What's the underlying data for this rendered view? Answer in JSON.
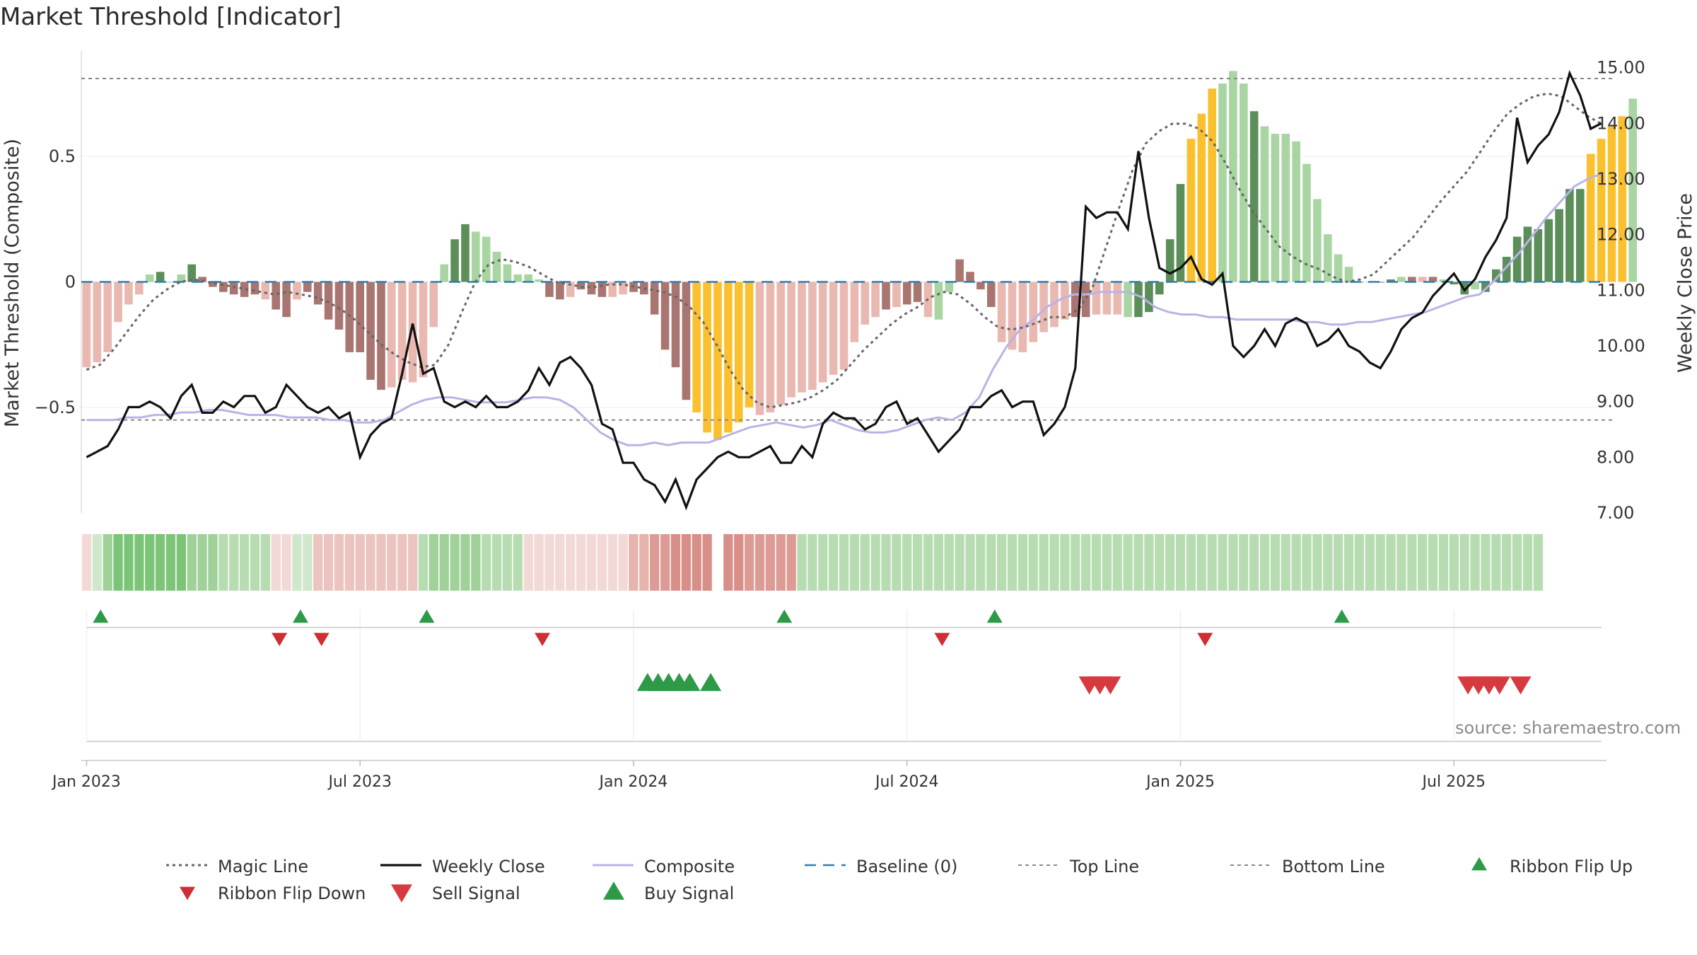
{
  "title": "Market Threshold [Indicator]",
  "source": "source: sharemaestro.com",
  "chart_data": {
    "type": "bar",
    "title": "Market Threshold [Indicator]",
    "ylabel_left": "Market Threshold (Composite)",
    "ylabel_right": "Weekly Close Price",
    "ylim_left": [
      -0.92,
      0.92
    ],
    "ylim_right": [
      7.0,
      15.3
    ],
    "yticks_left": [
      {
        "value": 0.5,
        "label": "0.5"
      },
      {
        "value": 0,
        "label": "0"
      },
      {
        "value": -0.5,
        "label": "−0.5"
      }
    ],
    "yticks_right": [
      {
        "value": 15,
        "label": "15.00"
      },
      {
        "value": 14,
        "label": "14.00"
      },
      {
        "value": 13,
        "label": "13.00"
      },
      {
        "value": 12,
        "label": "12.00"
      },
      {
        "value": 11,
        "label": "11.00"
      },
      {
        "value": 10,
        "label": "10.00"
      },
      {
        "value": 9,
        "label": "9.00"
      },
      {
        "value": 8,
        "label": "8.00"
      },
      {
        "value": 7,
        "label": "7.00"
      }
    ],
    "xticks": [
      {
        "week": 1,
        "label": "Jan 2023"
      },
      {
        "week": 27,
        "label": "Jul 2023"
      },
      {
        "week": 53,
        "label": "Jan 2024"
      },
      {
        "week": 79,
        "label": "Jul 2024"
      },
      {
        "week": 105,
        "label": "Jan 2025"
      },
      {
        "week": 131,
        "label": "Jul 2025"
      }
    ],
    "weeks": 145,
    "top_line": 0.81,
    "bottom_line": -0.55,
    "composite_values": [
      -0.34,
      -0.32,
      -0.28,
      -0.16,
      -0.09,
      -0.05,
      0.03,
      0.04,
      0,
      0.03,
      0.07,
      0.02,
      -0.02,
      -0.04,
      -0.05,
      -0.06,
      -0.05,
      -0.07,
      -0.11,
      -0.14,
      -0.07,
      -0.04,
      -0.09,
      -0.15,
      -0.19,
      -0.28,
      -0.28,
      -0.39,
      -0.43,
      -0.42,
      -0.39,
      -0.4,
      -0.38,
      -0.18,
      0.07,
      0.17,
      0.23,
      0.2,
      0.18,
      0.12,
      0.07,
      0.03,
      0.03,
      0.01,
      -0.06,
      -0.07,
      -0.06,
      -0.03,
      -0.05,
      -0.06,
      -0.06,
      -0.05,
      -0.04,
      -0.05,
      -0.13,
      -0.27,
      -0.34,
      -0.47,
      -0.52,
      -0.6,
      -0.63,
      -0.6,
      -0.56,
      -0.5,
      -0.53,
      -0.52,
      -0.49,
      -0.46,
      -0.44,
      -0.43,
      -0.4,
      -0.37,
      -0.35,
      -0.24,
      -0.17,
      -0.14,
      -0.11,
      -0.1,
      -0.09,
      -0.08,
      -0.14,
      -0.15,
      -0.04,
      0.09,
      0.04,
      -0.03,
      -0.1,
      -0.24,
      -0.27,
      -0.28,
      -0.24,
      -0.2,
      -0.18,
      -0.15,
      -0.14,
      -0.14,
      -0.13,
      -0.13,
      -0.13,
      -0.14,
      -0.14,
      -0.12,
      -0.05,
      0.17,
      0.39,
      0.57,
      0.67,
      0.77,
      0.79,
      0.84,
      0.79,
      0.68,
      0.62,
      0.59,
      0.59,
      0.56,
      0.47,
      0.33,
      0.19,
      0.11,
      0.06,
      0,
      0,
      0,
      0.01,
      0.02,
      0.02,
      0.02,
      0.02,
      0.01,
      -0.01,
      -0.05,
      -0.03,
      -0.04,
      0.05,
      0.1,
      0.18,
      0.22,
      0.21,
      0.25,
      0.29,
      0.37,
      0.37,
      0.51,
      0.57,
      0.62,
      0.66,
      0.73
    ],
    "bar_colors": [
      "#e9b8b1",
      "#e9b8b1",
      "#e9b8b1",
      "#e9b8b1",
      "#e9b8b1",
      "#e9b8b1",
      "#a8d5a2",
      "#5b8e58",
      "#a8d5a2",
      "#a8d5a2",
      "#5b8e58",
      "#a97570",
      "#a97570",
      "#a97570",
      "#a97570",
      "#a97570",
      "#a97570",
      "#e9b8b1",
      "#a97570",
      "#a97570",
      "#e9b8b1",
      "#a97570",
      "#a97570",
      "#a97570",
      "#a97570",
      "#a97570",
      "#a97570",
      "#a97570",
      "#a97570",
      "#e9b8b1",
      "#e9b8b1",
      "#e9b8b1",
      "#e9b8b1",
      "#e9b8b1",
      "#a8d5a2",
      "#5b8e58",
      "#5b8e58",
      "#a8d5a2",
      "#a8d5a2",
      "#a8d5a2",
      "#a8d5a2",
      "#a8d5a2",
      "#a8d5a2",
      "#a8d5a2",
      "#a97570",
      "#a97570",
      "#e9b8b1",
      "#a97570",
      "#a97570",
      "#a97570",
      "#e9b8b1",
      "#e9b8b1",
      "#a97570",
      "#a97570",
      "#a97570",
      "#a97570",
      "#a97570",
      "#a97570",
      "#fbc02d",
      "#fbc02d",
      "#fbc02d",
      "#fbc02d",
      "#fbc02d",
      "#fbc02d",
      "#e9b8b1",
      "#e9b8b1",
      "#e9b8b1",
      "#e9b8b1",
      "#e9b8b1",
      "#e9b8b1",
      "#e9b8b1",
      "#e9b8b1",
      "#e9b8b1",
      "#e9b8b1",
      "#e9b8b1",
      "#e9b8b1",
      "#a97570",
      "#e9b8b1",
      "#a97570",
      "#a97570",
      "#e9b8b1",
      "#a8d5a2",
      "#a8d5a2",
      "#a97570",
      "#a97570",
      "#a97570",
      "#a97570",
      "#e9b8b1",
      "#e9b8b1",
      "#e9b8b1",
      "#e9b8b1",
      "#e9b8b1",
      "#e9b8b1",
      "#e9b8b1",
      "#a97570",
      "#a97570",
      "#e9b8b1",
      "#e9b8b1",
      "#e9b8b1",
      "#a8d5a2",
      "#5b8e58",
      "#5b8e58",
      "#5b8e58",
      "#5b8e58",
      "#5b8e58",
      "#fbc02d",
      "#fbc02d",
      "#fbc02d",
      "#a8d5a2",
      "#a8d5a2",
      "#a8d5a2",
      "#5b8e58",
      "#a8d5a2",
      "#a8d5a2",
      "#a8d5a2",
      "#a8d5a2",
      "#a8d5a2",
      "#a8d5a2",
      "#a8d5a2",
      "#a8d5a2",
      "#a8d5a2",
      "#5b8e58",
      "#a8d5a2",
      "#5b8e58",
      "#5b8e58",
      "#a8d5a2",
      "#a97570",
      "#e9b8b1",
      "#a97570",
      "#a8d5a2",
      "#5b8e58",
      "#5b8e58",
      "#a8d5a2",
      "#5b8e58",
      "#5b8e58",
      "#5b8e58",
      "#5b8e58",
      "#5b8e58",
      "#5b8e58",
      "#5b8e58",
      "#5b8e58",
      "#5b8e58",
      "#5b8e58",
      "#fbc02d",
      "#fbc02d",
      "#fbc02d",
      "#fbc02d",
      "#a8d5a2",
      "#a8d5a2"
    ],
    "magic_line": [
      -0.35,
      -0.33,
      -0.27,
      -0.2,
      -0.13,
      -0.07,
      -0.03,
      0,
      0.01,
      0,
      -0.01,
      -0.02,
      -0.03,
      -0.04,
      -0.05,
      -0.04,
      -0.05,
      -0.06,
      -0.08,
      -0.11,
      -0.15,
      -0.2,
      -0.25,
      -0.29,
      -0.32,
      -0.34,
      -0.33,
      -0.25,
      -0.12,
      0,
      0.07,
      0.09,
      0.08,
      0.06,
      0.03,
      0,
      -0.01,
      -0.02,
      -0.02,
      -0.01,
      -0.01,
      -0.02,
      -0.03,
      -0.04,
      -0.06,
      -0.1,
      -0.16,
      -0.25,
      -0.35,
      -0.43,
      -0.48,
      -0.5,
      -0.49,
      -0.48,
      -0.46,
      -0.43,
      -0.39,
      -0.33,
      -0.27,
      -0.22,
      -0.17,
      -0.13,
      -0.1,
      -0.06,
      -0.04,
      -0.05,
      -0.09,
      -0.14,
      -0.18,
      -0.19,
      -0.18,
      -0.16,
      -0.14,
      -0.14,
      -0.11,
      -0.03,
      0.13,
      0.29,
      0.44,
      0.55,
      0.6,
      0.63,
      0.63,
      0.61,
      0.56,
      0.47,
      0.37,
      0.28,
      0.21,
      0.14,
      0.1,
      0.07,
      0.05,
      0.02,
      0,
      0.01,
      0.03,
      0.08,
      0.13,
      0.18,
      0.25,
      0.32,
      0.38,
      0.44,
      0.52,
      0.6,
      0.67,
      0.71,
      0.74,
      0.75,
      0.74,
      0.7,
      0.66,
      0.63
    ],
    "weekly_close": [
      8.0,
      8.1,
      8.2,
      8.5,
      8.9,
      8.9,
      9.0,
      8.9,
      8.7,
      9.1,
      9.3,
      8.8,
      8.8,
      9.0,
      8.9,
      9.1,
      9.1,
      8.8,
      8.9,
      9.3,
      9.1,
      8.9,
      8.8,
      8.9,
      8.7,
      8.8,
      8.0,
      8.4,
      8.6,
      8.7,
      9.5,
      10.4,
      9.5,
      9.6,
      9.0,
      8.9,
      9.0,
      8.9,
      9.1,
      8.9,
      8.9,
      9.0,
      9.2,
      9.6,
      9.3,
      9.7,
      9.8,
      9.6,
      9.3,
      8.6,
      8.5,
      7.9,
      7.9,
      7.6,
      7.5,
      7.2,
      7.6,
      7.1,
      7.6,
      7.8,
      8.0,
      8.1,
      8.0,
      8.0,
      8.1,
      8.2,
      7.9,
      7.9,
      8.2,
      8.0,
      8.6,
      8.8,
      8.7,
      8.7,
      8.5,
      8.6,
      8.9,
      9.0,
      8.6,
      8.7,
      8.4,
      8.1,
      8.3,
      8.5,
      8.9,
      8.9,
      9.1,
      9.2,
      8.9,
      9.0,
      9.0,
      8.4,
      8.6,
      8.9,
      9.6,
      12.5,
      12.3,
      12.4,
      12.4,
      12.1,
      13.5,
      12.3,
      11.4,
      11.3,
      11.4,
      11.6,
      11.2,
      11.1,
      11.3,
      10.0,
      9.8,
      10.0,
      10.3,
      10.0,
      10.4,
      10.5,
      10.4,
      10.0,
      10.1,
      10.3,
      10.0,
      9.9,
      9.7,
      9.6,
      9.9,
      10.3,
      10.5,
      10.6,
      10.9,
      11.1,
      11.3,
      11.0,
      11.2,
      11.6,
      11.9,
      12.3,
      14.1,
      13.3,
      13.6,
      13.8,
      14.2,
      14.9,
      14.5,
      13.9,
      14.0
    ],
    "composite_line": [
      -0.55,
      -0.55,
      -0.55,
      -0.54,
      -0.54,
      -0.53,
      -0.53,
      -0.52,
      -0.52,
      -0.51,
      -0.51,
      -0.52,
      -0.53,
      -0.53,
      -0.53,
      -0.54,
      -0.54,
      -0.54,
      -0.55,
      -0.55,
      -0.56,
      -0.56,
      -0.55,
      -0.52,
      -0.49,
      -0.47,
      -0.46,
      -0.46,
      -0.47,
      -0.48,
      -0.48,
      -0.48,
      -0.47,
      -0.46,
      -0.46,
      -0.47,
      -0.5,
      -0.55,
      -0.6,
      -0.63,
      -0.65,
      -0.65,
      -0.64,
      -0.65,
      -0.64,
      -0.64,
      -0.64,
      -0.62,
      -0.6,
      -0.58,
      -0.57,
      -0.56,
      -0.57,
      -0.58,
      -0.57,
      -0.55,
      -0.57,
      -0.59,
      -0.6,
      -0.6,
      -0.59,
      -0.57,
      -0.55,
      -0.54,
      -0.55,
      -0.52,
      -0.46,
      -0.35,
      -0.26,
      -0.19,
      -0.15,
      -0.1,
      -0.07,
      -0.05,
      -0.05,
      -0.04,
      -0.04,
      -0.04,
      -0.06,
      -0.1,
      -0.12,
      -0.13,
      -0.13,
      -0.14,
      -0.14,
      -0.15,
      -0.15,
      -0.15,
      -0.15,
      -0.15,
      -0.16,
      -0.16,
      -0.17,
      -0.17,
      -0.16,
      -0.16,
      -0.15,
      -0.14,
      -0.13,
      -0.12,
      -0.1,
      -0.08,
      -0.06,
      -0.05,
      0.0,
      0.06,
      0.12,
      0.19,
      0.26,
      0.32,
      0.38,
      0.41,
      0.43
    ],
    "ribbon_colors": [
      "#f3d9d6",
      "#cfe8cb",
      "#9fd199",
      "#7cc478",
      "#7cc478",
      "#7cc478",
      "#7cc478",
      "#7cc478",
      "#7cc478",
      "#7cc478",
      "#9fd199",
      "#9fd199",
      "#9fd199",
      "#b8dcb2",
      "#b8dcb2",
      "#b8dcb2",
      "#b8dcb2",
      "#b8dcb2",
      "#f3d9d6",
      "#f3d9d6",
      "#cfe8cb",
      "#cfe8cb",
      "#ebc4bf",
      "#ebc4bf",
      "#ebc4bf",
      "#ebc4bf",
      "#ebc4bf",
      "#ebc4bf",
      "#ebc4bf",
      "#ebc4bf",
      "#ebc4bf",
      "#ebc4bf",
      "#b8dcb2",
      "#9fd199",
      "#9fd199",
      "#9fd199",
      "#9fd199",
      "#9fd199",
      "#b8dcb2",
      "#b8dcb2",
      "#b8dcb2",
      "#b8dcb2",
      "#f3d9d6",
      "#f3d9d6",
      "#f3d9d6",
      "#f3d9d6",
      "#f3d9d6",
      "#f3d9d6",
      "#f3d9d6",
      "#f3d9d6",
      "#f3d9d6",
      "#f3d9d6",
      "#e6b3ad",
      "#e6b3ad",
      "#dc9b94",
      "#dc9b94",
      "#d88f88",
      "#d88f88",
      "#d88f88",
      "#d88f88",
      "#ffffff",
      "#d88f88",
      "#d88f88",
      "#dc9b94",
      "#dc9b94",
      "#dc9b94",
      "#dc9b94",
      "#dc9b94",
      "#b8dcb2",
      "#b8dcb2",
      "#b8dcb2",
      "#b8dcb2",
      "#b8dcb2",
      "#b8dcb2",
      "#b8dcb2",
      "#b8dcb2",
      "#b8dcb2",
      "#b8dcb2",
      "#b8dcb2",
      "#b8dcb2",
      "#b8dcb2",
      "#b8dcb2",
      "#b8dcb2",
      "#b8dcb2",
      "#b8dcb2",
      "#b8dcb2",
      "#b8dcb2",
      "#b8dcb2",
      "#b8dcb2",
      "#b8dcb2",
      "#b8dcb2",
      "#b8dcb2",
      "#b8dcb2",
      "#b8dcb2",
      "#b8dcb2",
      "#b8dcb2",
      "#b8dcb2",
      "#b8dcb2",
      "#b8dcb2",
      "#b8dcb2",
      "#b8dcb2",
      "#b8dcb2",
      "#b8dcb2",
      "#b8dcb2",
      "#b8dcb2",
      "#b8dcb2",
      "#b8dcb2",
      "#b8dcb2",
      "#b8dcb2",
      "#b8dcb2",
      "#b8dcb2",
      "#b8dcb2",
      "#b8dcb2",
      "#b8dcb2",
      "#b8dcb2",
      "#b8dcb2",
      "#b8dcb2",
      "#b8dcb2",
      "#b8dcb2",
      "#b8dcb2",
      "#b8dcb2",
      "#b8dcb2",
      "#b8dcb2",
      "#b8dcb2",
      "#b8dcb2",
      "#b8dcb2",
      "#b8dcb2",
      "#b8dcb2",
      "#b8dcb2",
      "#b8dcb2",
      "#b8dcb2",
      "#b8dcb2",
      "#b8dcb2",
      "#b8dcb2",
      "#b8dcb2",
      "#b8dcb2",
      "#b8dcb2",
      "#b8dcb2",
      "#b8dcb2"
    ],
    "ribbon_flip_up_weeks": [
      2,
      21,
      33,
      67,
      87,
      120
    ],
    "ribbon_flip_down_weeks": [
      19,
      23,
      44,
      82,
      107
    ],
    "buy_signal_weeks": [
      54,
      55,
      56,
      57,
      58,
      60
    ],
    "sell_signal_weeks": [
      96,
      97,
      98,
      132,
      133,
      134,
      135,
      137
    ],
    "legend": [
      {
        "label": "Magic Line",
        "style": "dotted-dark"
      },
      {
        "label": "Weekly Close",
        "style": "solid-black"
      },
      {
        "label": "Composite",
        "style": "solid-lavender"
      },
      {
        "label": "Baseline (0)",
        "style": "dashed-blue"
      },
      {
        "label": "Top Line",
        "style": "dotted-gray"
      },
      {
        "label": "Bottom Line",
        "style": "dotted-gray"
      },
      {
        "label": "Ribbon Flip Up",
        "style": "triangle-up-green"
      },
      {
        "label": "Ribbon Flip Down",
        "style": "triangle-down-red"
      },
      {
        "label": "Sell Signal",
        "style": "triangle-down-red-large"
      },
      {
        "label": "Buy Signal",
        "style": "triangle-up-green-large"
      }
    ]
  },
  "colors": {
    "magic_line": "#666666",
    "weekly_close": "#111111",
    "composite_line": "#b9b3e6",
    "baseline": "#2f7fb0",
    "top_bottom": "#888888",
    "green_signal": "#2e9a48",
    "red_signal": "#d63a3f"
  }
}
